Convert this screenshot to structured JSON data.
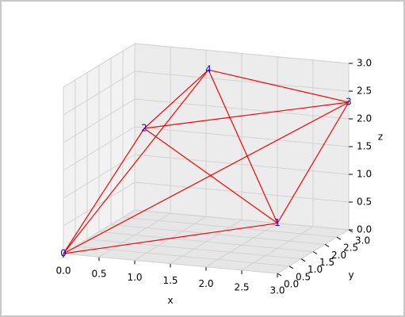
{
  "chart_data": {
    "type": "graph3d",
    "nodes": [
      {
        "label": "0",
        "x": 0,
        "y": 0,
        "z": 0
      },
      {
        "label": "1",
        "x": 2,
        "y": 3,
        "z": 0
      },
      {
        "label": "2",
        "x": 0.7,
        "y": 1.3,
        "z": 2
      },
      {
        "label": "3",
        "x": 3,
        "y": 3,
        "z": 2.3
      },
      {
        "label": "4",
        "x": 1.2,
        "y": 2.5,
        "z": 2.8
      }
    ],
    "edges": [
      [
        0,
        1
      ],
      [
        0,
        2
      ],
      [
        0,
        3
      ],
      [
        0,
        4
      ],
      [
        1,
        2
      ],
      [
        1,
        3
      ],
      [
        1,
        4
      ],
      [
        2,
        3
      ],
      [
        2,
        4
      ],
      [
        3,
        4
      ]
    ],
    "edge_color": "#ff0000",
    "label_color": "#0000ff",
    "xlabel": "x",
    "ylabel": "y",
    "zlabel": "z",
    "xlim": [
      0,
      3
    ],
    "ylim": [
      0,
      3
    ],
    "zlim": [
      0,
      3
    ],
    "xticks": [
      {
        "value": 0,
        "label": "0.0"
      },
      {
        "value": 0.5,
        "label": "0.5"
      },
      {
        "value": 1,
        "label": "1.0"
      },
      {
        "value": 1.5,
        "label": "1.5"
      },
      {
        "value": 2,
        "label": "2.0"
      },
      {
        "value": 2.5,
        "label": "2.5"
      },
      {
        "value": 3,
        "label": "3.0"
      }
    ],
    "yticks": [
      {
        "value": 0,
        "label": "0.0"
      },
      {
        "value": 0.5,
        "label": "0.5"
      },
      {
        "value": 1,
        "label": "1.0"
      },
      {
        "value": 1.5,
        "label": "1.5"
      },
      {
        "value": 2,
        "label": "2.0"
      },
      {
        "value": 2.5,
        "label": "2.5"
      },
      {
        "value": 3,
        "label": "3.0"
      }
    ],
    "zticks": [
      {
        "value": 0,
        "label": "0.0"
      },
      {
        "value": 0.5,
        "label": "0.5"
      },
      {
        "value": 1,
        "label": "1.0"
      },
      {
        "value": 1.5,
        "label": "1.5"
      },
      {
        "value": 2,
        "label": "2.0"
      },
      {
        "value": 2.5,
        "label": "2.5"
      },
      {
        "value": 3,
        "label": "3.0"
      }
    ],
    "grid": true
  }
}
